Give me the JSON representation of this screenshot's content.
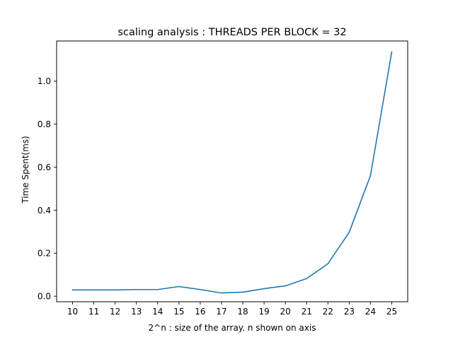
{
  "chart_data": {
    "type": "line",
    "title": "scaling analysis : THREADS PER BLOCK = 32",
    "xlabel": "2^n : size of the array. n shown on axis",
    "ylabel": "Time Spent(ms)",
    "x": [
      10,
      11,
      12,
      13,
      14,
      15,
      16,
      17,
      18,
      19,
      20,
      21,
      22,
      23,
      24,
      25
    ],
    "x_tick_labels": [
      "10",
      "11",
      "12",
      "13",
      "14",
      "15",
      "16",
      "17",
      "18",
      "19",
      "20",
      "21",
      "22",
      "23",
      "24",
      "25"
    ],
    "y_ticks": [
      0.0,
      0.2,
      0.4,
      0.6,
      0.8,
      1.0
    ],
    "y_tick_labels": [
      "0.0",
      "0.2",
      "0.4",
      "0.6",
      "0.8",
      "1.0"
    ],
    "xlim": [
      9.25,
      25.75
    ],
    "ylim": [
      -0.0257,
      1.1869
    ],
    "grid": false,
    "series": [
      {
        "color": "#1f77b4",
        "values": [
          0.029,
          0.029,
          0.029,
          0.031,
          0.031,
          0.045,
          0.031,
          0.015,
          0.019,
          0.035,
          0.048,
          0.082,
          0.151,
          0.297,
          0.561,
          1.136
        ]
      }
    ]
  }
}
